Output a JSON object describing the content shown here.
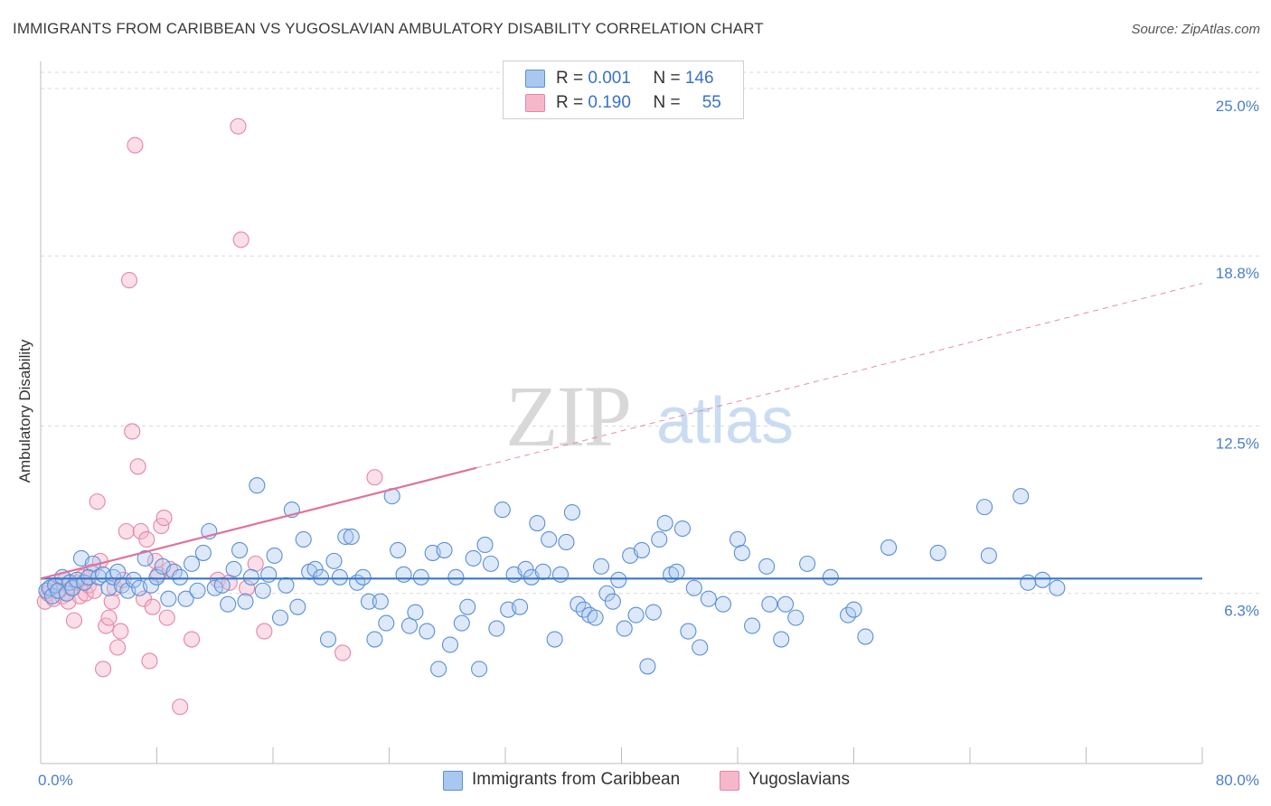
{
  "title": "IMMIGRANTS FROM CARIBBEAN VS YUGOSLAVIAN AMBULATORY DISABILITY CORRELATION CHART",
  "source": "Source: ZipAtlas.com",
  "watermark": {
    "zip": "ZIP",
    "atlas": "atlas"
  },
  "colors": {
    "blue_fill": "#a9c8ef",
    "blue_stroke": "#5b8fd6",
    "blue_line": "#3874c8",
    "pink_fill": "#f5b8cb",
    "pink_stroke": "#e784a3",
    "pink_line": "#e0719a",
    "axis_text": "#4a7fc9",
    "grid": "#d9d9d9"
  },
  "legend": {
    "rows": [
      {
        "r_label": "R = ",
        "r_value": "0.001",
        "n_label": "N = ",
        "n_value": "146"
      },
      {
        "r_label": "R = ",
        "r_value": "0.190",
        "n_label": "N = ",
        "n_value": "55"
      }
    ]
  },
  "bottom_legend": {
    "series1": "Immigrants from Caribbean",
    "series2": "Yugoslavians"
  },
  "chart_data": {
    "type": "scatter",
    "title": "IMMIGRANTS FROM CARIBBEAN VS YUGOSLAVIAN AMBULATORY DISABILITY CORRELATION CHART",
    "xlabel": "",
    "ylabel": "Ambulatory Disability",
    "xlim": [
      0,
      80
    ],
    "ylim": [
      0,
      25.6
    ],
    "x_tick_labels": [
      "0.0%",
      "80.0%"
    ],
    "y_ticks": [
      6.3,
      12.5,
      18.8,
      25.0
    ],
    "y_tick_labels": [
      "6.3%",
      "12.5%",
      "18.8%",
      "25.0%"
    ],
    "grid": "horizontal dashed",
    "legend_position": "top-center",
    "series": [
      {
        "name": "Immigrants from Caribbean",
        "color": "#a9c8ef",
        "r": 0.001,
        "n": 146,
        "trend": {
          "x": [
            0,
            80
          ],
          "y": [
            6.85,
            6.85
          ],
          "dashed_x": []
        },
        "points": [
          [
            0.4,
            6.4
          ],
          [
            0.6,
            6.5
          ],
          [
            0.8,
            6.2
          ],
          [
            1.0,
            6.6
          ],
          [
            1.2,
            6.4
          ],
          [
            1.5,
            6.9
          ],
          [
            1.8,
            6.3
          ],
          [
            2.0,
            6.7
          ],
          [
            2.2,
            6.5
          ],
          [
            2.5,
            6.8
          ],
          [
            2.8,
            7.6
          ],
          [
            3.0,
            6.7
          ],
          [
            3.3,
            6.9
          ],
          [
            3.6,
            7.4
          ],
          [
            4.0,
            6.9
          ],
          [
            4.3,
            7.0
          ],
          [
            4.7,
            6.5
          ],
          [
            5.0,
            6.9
          ],
          [
            5.3,
            7.1
          ],
          [
            5.6,
            6.6
          ],
          [
            6.0,
            6.4
          ],
          [
            6.4,
            6.8
          ],
          [
            6.8,
            6.5
          ],
          [
            7.2,
            7.6
          ],
          [
            7.6,
            6.6
          ],
          [
            8.0,
            6.9
          ],
          [
            8.4,
            7.3
          ],
          [
            8.8,
            6.1
          ],
          [
            9.2,
            7.1
          ],
          [
            9.6,
            6.9
          ],
          [
            10.0,
            6.1
          ],
          [
            10.4,
            7.4
          ],
          [
            10.8,
            6.4
          ],
          [
            11.2,
            7.8
          ],
          [
            11.6,
            8.6
          ],
          [
            12.0,
            6.5
          ],
          [
            12.5,
            6.6
          ],
          [
            12.9,
            5.9
          ],
          [
            13.3,
            7.2
          ],
          [
            13.7,
            7.9
          ],
          [
            14.1,
            6.0
          ],
          [
            14.5,
            6.9
          ],
          [
            14.9,
            10.3
          ],
          [
            15.3,
            6.4
          ],
          [
            15.7,
            7.0
          ],
          [
            16.1,
            7.7
          ],
          [
            16.5,
            5.4
          ],
          [
            16.9,
            6.6
          ],
          [
            17.3,
            9.4
          ],
          [
            17.7,
            5.8
          ],
          [
            18.1,
            8.3
          ],
          [
            18.5,
            7.1
          ],
          [
            18.9,
            7.2
          ],
          [
            19.3,
            6.9
          ],
          [
            19.8,
            4.6
          ],
          [
            20.2,
            7.5
          ],
          [
            20.6,
            6.9
          ],
          [
            21.0,
            8.4
          ],
          [
            21.4,
            8.4
          ],
          [
            21.8,
            6.7
          ],
          [
            22.2,
            6.9
          ],
          [
            22.6,
            6.0
          ],
          [
            23.0,
            4.6
          ],
          [
            23.4,
            6.0
          ],
          [
            23.8,
            5.2
          ],
          [
            24.2,
            9.9
          ],
          [
            24.6,
            7.9
          ],
          [
            25.0,
            7.0
          ],
          [
            25.4,
            5.1
          ],
          [
            25.8,
            5.6
          ],
          [
            26.2,
            6.9
          ],
          [
            26.6,
            4.9
          ],
          [
            27.0,
            7.8
          ],
          [
            27.4,
            3.5
          ],
          [
            27.8,
            7.9
          ],
          [
            28.2,
            4.4
          ],
          [
            28.6,
            6.9
          ],
          [
            29.0,
            5.2
          ],
          [
            29.4,
            5.8
          ],
          [
            29.8,
            7.6
          ],
          [
            30.2,
            3.5
          ],
          [
            30.6,
            8.1
          ],
          [
            31.0,
            7.4
          ],
          [
            31.4,
            5.0
          ],
          [
            31.8,
            9.4
          ],
          [
            32.2,
            5.7
          ],
          [
            32.6,
            7.0
          ],
          [
            33.0,
            5.8
          ],
          [
            33.4,
            7.2
          ],
          [
            33.8,
            6.9
          ],
          [
            34.2,
            8.9
          ],
          [
            34.6,
            7.1
          ],
          [
            35.0,
            8.3
          ],
          [
            35.4,
            4.6
          ],
          [
            35.8,
            7.0
          ],
          [
            36.2,
            8.2
          ],
          [
            36.6,
            9.3
          ],
          [
            37.0,
            5.9
          ],
          [
            37.4,
            5.7
          ],
          [
            37.8,
            5.5
          ],
          [
            38.2,
            5.4
          ],
          [
            38.6,
            7.3
          ],
          [
            39.0,
            6.3
          ],
          [
            39.4,
            6.0
          ],
          [
            39.8,
            6.8
          ],
          [
            40.2,
            5.0
          ],
          [
            40.6,
            7.7
          ],
          [
            41.0,
            5.5
          ],
          [
            41.4,
            7.9
          ],
          [
            41.8,
            3.6
          ],
          [
            42.2,
            5.6
          ],
          [
            42.6,
            8.3
          ],
          [
            43.0,
            8.9
          ],
          [
            43.4,
            7.0
          ],
          [
            43.8,
            7.1
          ],
          [
            44.2,
            8.7
          ],
          [
            44.6,
            4.9
          ],
          [
            45.0,
            6.5
          ],
          [
            45.4,
            4.3
          ],
          [
            46.0,
            6.1
          ],
          [
            47.0,
            5.9
          ],
          [
            48.0,
            8.3
          ],
          [
            48.3,
            7.8
          ],
          [
            49.0,
            5.1
          ],
          [
            50.0,
            7.3
          ],
          [
            50.2,
            5.9
          ],
          [
            51.0,
            4.6
          ],
          [
            51.3,
            5.9
          ],
          [
            52.0,
            5.4
          ],
          [
            52.8,
            7.4
          ],
          [
            54.4,
            6.9
          ],
          [
            55.6,
            5.5
          ],
          [
            56.0,
            5.7
          ],
          [
            56.8,
            4.7
          ],
          [
            58.4,
            8.0
          ],
          [
            61.8,
            7.8
          ],
          [
            65.0,
            9.5
          ],
          [
            65.3,
            7.7
          ],
          [
            67.5,
            9.9
          ],
          [
            68.0,
            6.7
          ],
          [
            69.0,
            6.8
          ],
          [
            70.0,
            6.5
          ]
        ]
      },
      {
        "name": "Yugoslavians",
        "color": "#f5b8cb",
        "r": 0.19,
        "n": 55,
        "trend": {
          "x": [
            0,
            30
          ],
          "y": [
            6.85,
            10.95
          ],
          "dashed_x": [
            30,
            80
          ]
        },
        "points": [
          [
            0.3,
            6.0
          ],
          [
            0.5,
            6.3
          ],
          [
            0.7,
            6.5
          ],
          [
            0.9,
            6.1
          ],
          [
            1.1,
            6.6
          ],
          [
            1.3,
            6.4
          ],
          [
            1.5,
            6.2
          ],
          [
            1.7,
            6.8
          ],
          [
            1.9,
            6.0
          ],
          [
            2.1,
            6.5
          ],
          [
            2.3,
            5.3
          ],
          [
            2.5,
            6.7
          ],
          [
            2.7,
            6.2
          ],
          [
            2.9,
            6.9
          ],
          [
            3.1,
            6.3
          ],
          [
            3.3,
            6.6
          ],
          [
            3.5,
            7.1
          ],
          [
            3.7,
            6.4
          ],
          [
            3.9,
            9.7
          ],
          [
            4.1,
            7.5
          ],
          [
            4.3,
            3.5
          ],
          [
            4.5,
            5.1
          ],
          [
            4.7,
            5.4
          ],
          [
            4.9,
            6.0
          ],
          [
            5.1,
            6.5
          ],
          [
            5.3,
            4.3
          ],
          [
            5.5,
            4.9
          ],
          [
            5.7,
            6.8
          ],
          [
            5.9,
            8.6
          ],
          [
            6.1,
            17.9
          ],
          [
            6.3,
            12.3
          ],
          [
            6.5,
            22.9
          ],
          [
            6.7,
            11.0
          ],
          [
            6.9,
            8.6
          ],
          [
            7.1,
            6.1
          ],
          [
            7.3,
            8.3
          ],
          [
            7.5,
            3.8
          ],
          [
            7.7,
            5.8
          ],
          [
            7.9,
            7.5
          ],
          [
            8.1,
            7.0
          ],
          [
            8.3,
            8.8
          ],
          [
            8.5,
            9.1
          ],
          [
            8.7,
            5.4
          ],
          [
            8.9,
            7.2
          ],
          [
            9.6,
            2.1
          ],
          [
            10.4,
            4.6
          ],
          [
            12.2,
            6.8
          ],
          [
            13.0,
            6.7
          ],
          [
            13.6,
            23.6
          ],
          [
            13.8,
            19.4
          ],
          [
            14.2,
            6.5
          ],
          [
            14.8,
            7.4
          ],
          [
            15.4,
            4.9
          ],
          [
            20.8,
            4.1
          ],
          [
            23.0,
            10.6
          ]
        ]
      }
    ]
  }
}
